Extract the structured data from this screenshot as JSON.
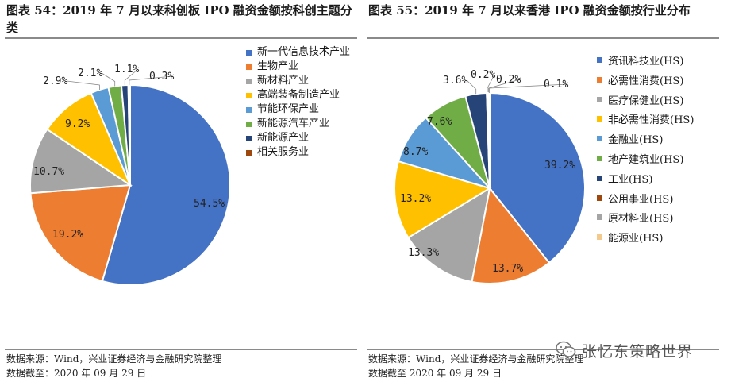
{
  "left": {
    "title": "图表 54：2019 年 7 月以来科创板 IPO 融资金额按科创主题分类",
    "source": "数据来源：Wind，兴业证券经济与金融研究院整理",
    "date": "数据截至：2020 年 09 月 29 日"
  },
  "right": {
    "title": "图表 55：2019 年 7 月以来香港 IPO 融资金额按行业分布",
    "source": "数据来源：Wind，兴业证券经济与金融研究院整理",
    "date": "数据截至 2020 年 09 月 29 日"
  },
  "watermark": {
    "text": "张忆东策略世界",
    "icon": "wechat-icon"
  },
  "chart_data": [
    {
      "type": "pie",
      "title": "",
      "legend_position": "right",
      "start_angle_deg": 0,
      "direction": "clockwise",
      "series": [
        {
          "name": "新一代信息技术产业",
          "value": 54.5,
          "label": "54.5%",
          "color": "#4472C4"
        },
        {
          "name": "生物产业",
          "value": 19.2,
          "label": "19.2%",
          "color": "#ED7D31"
        },
        {
          "name": "新材料产业",
          "value": 10.7,
          "label": "10.7%",
          "color": "#A5A5A5"
        },
        {
          "name": "高端装备制造产业",
          "value": 9.2,
          "label": "9.2%",
          "color": "#FFC000"
        },
        {
          "name": "节能环保产业",
          "value": 2.9,
          "label": "2.9%",
          "color": "#5B9BD5"
        },
        {
          "name": "新能源汽车产业",
          "value": 2.1,
          "label": "2.1%",
          "color": "#70AD47"
        },
        {
          "name": "新能源产业",
          "value": 1.1,
          "label": "1.1%",
          "color": "#264478"
        },
        {
          "name": "相关服务业",
          "value": 0.3,
          "label": "0.3%",
          "color": "#9E480E"
        }
      ]
    },
    {
      "type": "pie",
      "title": "",
      "legend_position": "right",
      "start_angle_deg": 0,
      "direction": "clockwise",
      "series": [
        {
          "name": "资讯科技业(HS)",
          "value": 39.2,
          "label": "39.2%",
          "color": "#4472C4"
        },
        {
          "name": "必需性消费(HS)",
          "value": 13.7,
          "label": "13.7%",
          "color": "#ED7D31"
        },
        {
          "name": "医疗保健业(HS)",
          "value": 13.3,
          "label": "13.3%",
          "color": "#A5A5A5"
        },
        {
          "name": "非必需性消费(HS)",
          "value": 13.2,
          "label": "13.2%",
          "color": "#FFC000"
        },
        {
          "name": "金融业(HS)",
          "value": 8.7,
          "label": "8.7%",
          "color": "#5B9BD5"
        },
        {
          "name": "地产建筑业(HS)",
          "value": 7.6,
          "label": "7.6%",
          "color": "#70AD47"
        },
        {
          "name": "工业(HS)",
          "value": 3.6,
          "label": "3.6%",
          "color": "#264478"
        },
        {
          "name": "公用事业(HS)",
          "value": 0.2,
          "label": "0.2%",
          "color": "#9E480E"
        },
        {
          "name": "原材料业(HS)",
          "value": 0.2,
          "label": "0.2%",
          "color": "#A5A5A5"
        },
        {
          "name": "能源业(HS)",
          "value": 0.1,
          "label": "0.1%",
          "color": "#F4C98E"
        }
      ]
    }
  ]
}
